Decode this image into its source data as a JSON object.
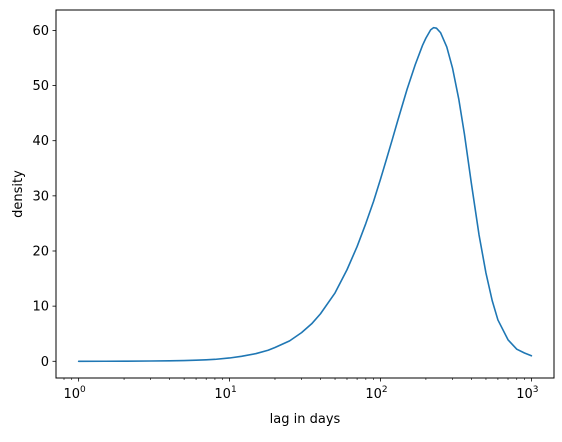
{
  "chart_data": {
    "type": "line",
    "title": "",
    "xlabel": "lag in days",
    "ylabel": "density",
    "xscale": "log",
    "xlim": [
      0.708,
      1412
    ],
    "ylim": [
      -3.03,
      63.7
    ],
    "grid": false,
    "xticks": [
      {
        "value": 1,
        "base": "10",
        "exp": "0"
      },
      {
        "value": 10,
        "base": "10",
        "exp": "1"
      },
      {
        "value": 100,
        "base": "10",
        "exp": "2"
      },
      {
        "value": 1000,
        "base": "10",
        "exp": "3"
      }
    ],
    "yticks": [
      0,
      10,
      20,
      30,
      40,
      50,
      60
    ],
    "series": [
      {
        "color": "#1f77b4",
        "x": [
          1,
          1.5,
          2,
          3,
          4,
          5,
          6,
          7,
          8,
          10,
          12,
          15,
          18,
          20,
          25,
          30,
          35,
          40,
          50,
          60,
          70,
          80,
          90,
          100,
          110,
          120,
          130,
          150,
          170,
          190,
          200,
          215,
          225,
          235,
          250,
          275,
          300,
          330,
          360,
          400,
          450,
          500,
          550,
          600,
          700,
          800,
          900,
          1000
        ],
        "y": [
          0.0,
          0.01,
          0.02,
          0.05,
          0.09,
          0.14,
          0.2,
          0.27,
          0.35,
          0.6,
          0.9,
          1.4,
          2.0,
          2.5,
          3.7,
          5.2,
          6.8,
          8.6,
          12.4,
          16.6,
          20.8,
          25.0,
          29.0,
          33.0,
          36.8,
          40.3,
          43.6,
          49.3,
          53.8,
          57.3,
          58.6,
          60.1,
          60.5,
          60.4,
          59.6,
          57.0,
          53.2,
          47.6,
          41.2,
          32.3,
          22.9,
          16.0,
          11.0,
          7.5,
          3.9,
          2.2,
          1.5,
          1.0
        ]
      }
    ]
  }
}
